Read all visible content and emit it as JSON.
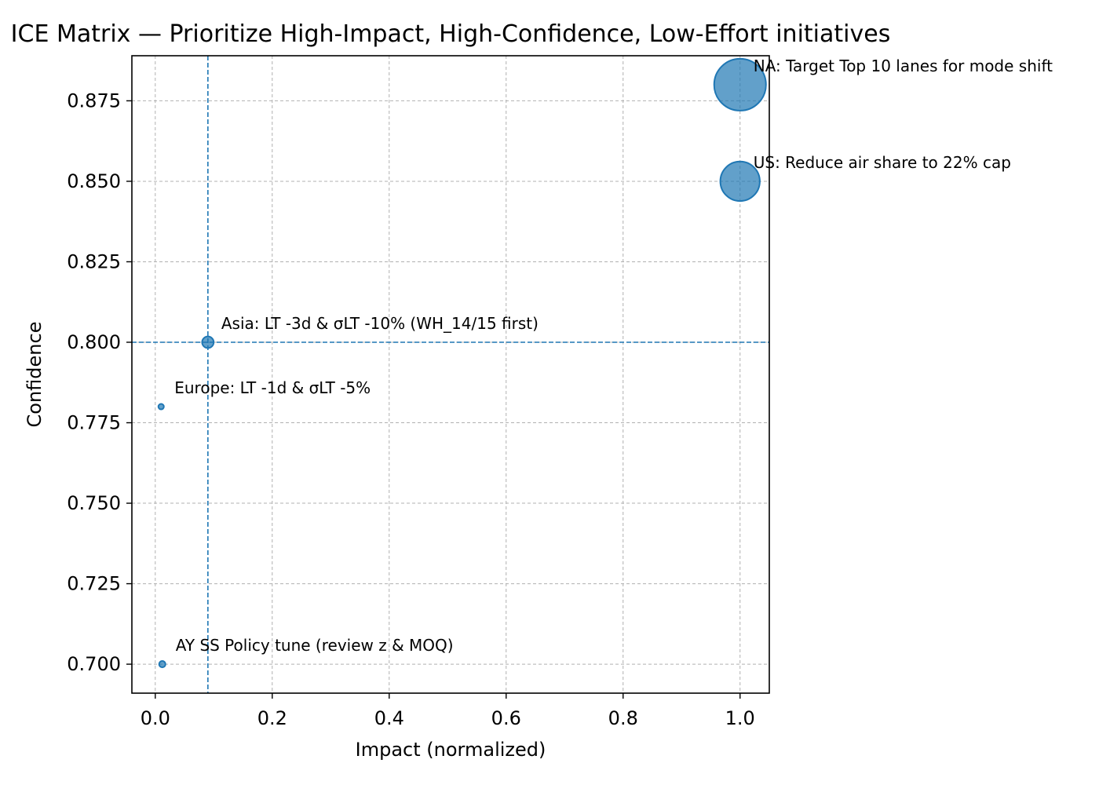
{
  "chart_data": {
    "type": "scatter",
    "title": "ICE Matrix — Prioritize High-Impact, High-Confidence, Low-Effort initiatives",
    "xlabel": "Impact (normalized)",
    "ylabel": "Confidence",
    "xlim": [
      -0.04,
      1.05
    ],
    "ylim": [
      0.691,
      0.889
    ],
    "xticks": [
      0.0,
      0.2,
      0.4,
      0.6,
      0.8,
      1.0
    ],
    "xtick_labels": [
      "0.0",
      "0.2",
      "0.4",
      "0.6",
      "0.8",
      "1.0"
    ],
    "yticks": [
      0.7,
      0.725,
      0.75,
      0.775,
      0.8,
      0.825,
      0.85,
      0.875
    ],
    "ytick_labels": [
      "0.700",
      "0.725",
      "0.750",
      "0.775",
      "0.800",
      "0.825",
      "0.850",
      "0.875"
    ],
    "grid": true,
    "legend": false,
    "point_color": "#1f77b4",
    "reference_lines": {
      "x": 0.09,
      "y": 0.8
    },
    "points": [
      {
        "label": "NA: Target Top 10 lanes for mode shift",
        "x": 1.0,
        "y": 0.88,
        "size": 1.0
      },
      {
        "label": "US: Reduce air share to 22% cap",
        "x": 1.0,
        "y": 0.85,
        "size": 0.58
      },
      {
        "label": "Asia: LT -3d & σLT -10% (WH_14/15 first)",
        "x": 0.09,
        "y": 0.8,
        "size": 0.05
      },
      {
        "label": "Europe: LT -1d & σLT -5%",
        "x": 0.01,
        "y": 0.78,
        "size": 0.01
      },
      {
        "label": "AY SS Policy tune (review z & MOQ)",
        "x": 0.012,
        "y": 0.7,
        "size": 0.015
      }
    ]
  }
}
